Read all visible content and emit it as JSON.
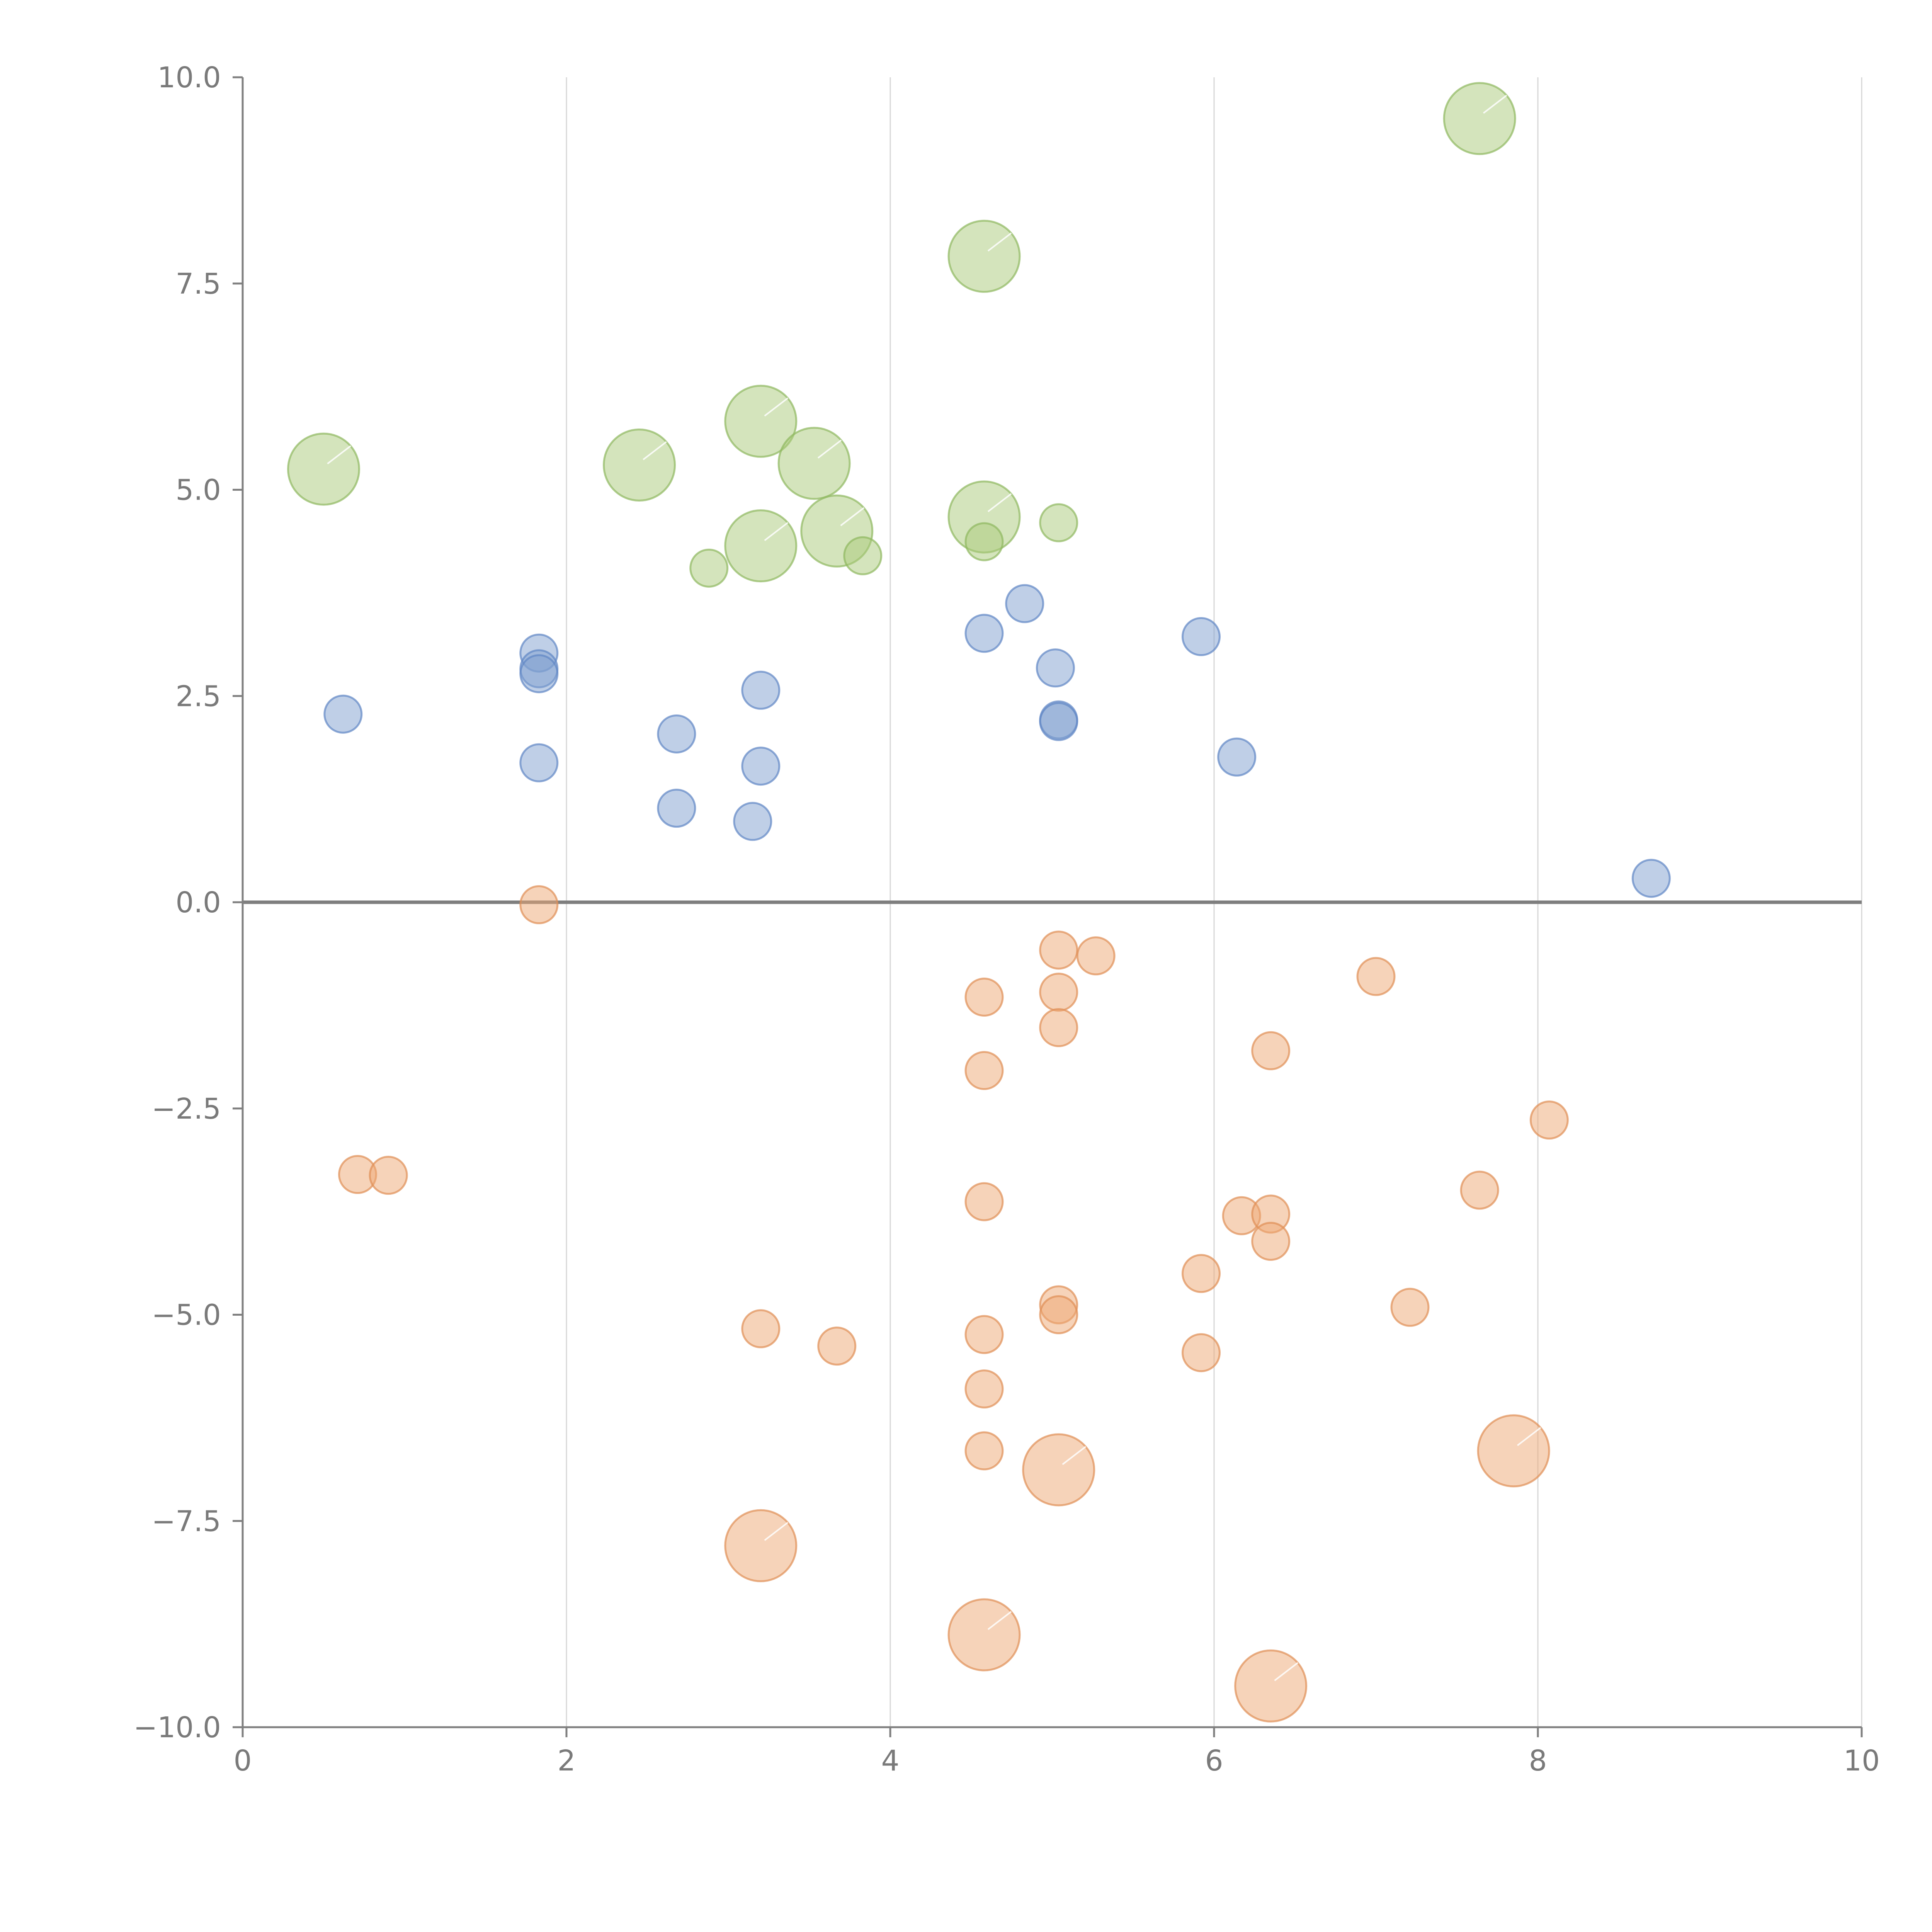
{
  "chart_data": {
    "type": "scatter",
    "title": "",
    "xlabel": "",
    "ylabel": "",
    "xlim": [
      0,
      10
    ],
    "ylim": [
      -10,
      10
    ],
    "x_ticks": [
      0,
      2,
      4,
      6,
      8,
      10
    ],
    "x_tick_labels": [
      "0",
      "2",
      "4",
      "6",
      "8",
      "10"
    ],
    "y_ticks": [
      10,
      7.5,
      5,
      2.5,
      0,
      -2.5,
      -5,
      -7.5,
      -10
    ],
    "y_tick_labels": [
      "10.0",
      "7.5",
      "5.0",
      "2.5",
      "0.0",
      "−2.5",
      "−5.0",
      "−7.5",
      "−10.0"
    ],
    "vertical_grid": true,
    "horizontal_reference": 0,
    "series": [
      {
        "name": "green",
        "color": "#a9c97a",
        "stroke": "#8fb860",
        "points": [
          {
            "x": 0.5,
            "y": 5.25,
            "size": 3
          },
          {
            "x": 2.45,
            "y": 5.3,
            "size": 3
          },
          {
            "x": 2.88,
            "y": 4.05,
            "size": 1
          },
          {
            "x": 3.2,
            "y": 5.83,
            "size": 3
          },
          {
            "x": 3.2,
            "y": 4.32,
            "size": 3
          },
          {
            "x": 3.53,
            "y": 5.32,
            "size": 3
          },
          {
            "x": 3.67,
            "y": 4.5,
            "size": 3
          },
          {
            "x": 3.83,
            "y": 4.2,
            "size": 1
          },
          {
            "x": 4.58,
            "y": 7.83,
            "size": 3
          },
          {
            "x": 4.58,
            "y": 4.67,
            "size": 3
          },
          {
            "x": 4.58,
            "y": 4.37,
            "size": 1
          },
          {
            "x": 5.04,
            "y": 4.6,
            "size": 1
          },
          {
            "x": 7.64,
            "y": 9.5,
            "size": 3
          }
        ]
      },
      {
        "name": "blue",
        "color": "#7f9fd0",
        "stroke": "#5f86c4",
        "points": [
          {
            "x": 0.62,
            "y": 2.28,
            "size": 1
          },
          {
            "x": 1.83,
            "y": 3.02,
            "size": 1
          },
          {
            "x": 1.83,
            "y": 2.83,
            "size": 1
          },
          {
            "x": 1.83,
            "y": 2.77,
            "size": 1
          },
          {
            "x": 1.83,
            "y": 1.69,
            "size": 1
          },
          {
            "x": 2.68,
            "y": 2.04,
            "size": 1
          },
          {
            "x": 2.68,
            "y": 1.14,
            "size": 1
          },
          {
            "x": 3.15,
            "y": 0.98,
            "size": 1
          },
          {
            "x": 3.2,
            "y": 2.57,
            "size": 1
          },
          {
            "x": 3.2,
            "y": 1.65,
            "size": 1
          },
          {
            "x": 4.58,
            "y": 3.26,
            "size": 1
          },
          {
            "x": 4.83,
            "y": 3.62,
            "size": 1
          },
          {
            "x": 5.02,
            "y": 2.84,
            "size": 1
          },
          {
            "x": 5.04,
            "y": 2.21,
            "size": 1
          },
          {
            "x": 5.04,
            "y": 2.19,
            "size": 1
          },
          {
            "x": 5.92,
            "y": 3.22,
            "size": 1
          },
          {
            "x": 6.14,
            "y": 1.76,
            "size": 1
          },
          {
            "x": 8.7,
            "y": 0.29,
            "size": 1
          }
        ]
      },
      {
        "name": "orange",
        "color": "#eda874",
        "stroke": "#e08f55",
        "points": [
          {
            "x": 0.71,
            "y": -3.3,
            "size": 1
          },
          {
            "x": 0.9,
            "y": -3.31,
            "size": 1
          },
          {
            "x": 1.83,
            "y": -0.03,
            "size": 1
          },
          {
            "x": 3.2,
            "y": -5.17,
            "size": 1
          },
          {
            "x": 3.2,
            "y": -7.8,
            "size": 3
          },
          {
            "x": 3.67,
            "y": -5.38,
            "size": 1
          },
          {
            "x": 4.58,
            "y": -1.15,
            "size": 1
          },
          {
            "x": 4.58,
            "y": -2.04,
            "size": 1
          },
          {
            "x": 4.58,
            "y": -3.63,
            "size": 1
          },
          {
            "x": 4.58,
            "y": -5.24,
            "size": 1
          },
          {
            "x": 4.58,
            "y": -5.9,
            "size": 1
          },
          {
            "x": 4.58,
            "y": -6.65,
            "size": 1
          },
          {
            "x": 4.58,
            "y": -8.88,
            "size": 3
          },
          {
            "x": 5.04,
            "y": -0.58,
            "size": 1
          },
          {
            "x": 5.04,
            "y": -1.09,
            "size": 1
          },
          {
            "x": 5.04,
            "y": -1.52,
            "size": 1
          },
          {
            "x": 5.04,
            "y": -4.88,
            "size": 1
          },
          {
            "x": 5.04,
            "y": -5.0,
            "size": 1
          },
          {
            "x": 5.04,
            "y": -6.88,
            "size": 3
          },
          {
            "x": 5.27,
            "y": -0.65,
            "size": 1
          },
          {
            "x": 5.92,
            "y": -4.5,
            "size": 1
          },
          {
            "x": 5.92,
            "y": -5.46,
            "size": 1
          },
          {
            "x": 6.17,
            "y": -3.8,
            "size": 1
          },
          {
            "x": 6.35,
            "y": -1.8,
            "size": 1
          },
          {
            "x": 6.35,
            "y": -3.78,
            "size": 1
          },
          {
            "x": 6.35,
            "y": -4.11,
            "size": 1
          },
          {
            "x": 6.35,
            "y": -9.5,
            "size": 3
          },
          {
            "x": 7.0,
            "y": -0.9,
            "size": 1
          },
          {
            "x": 7.21,
            "y": -4.91,
            "size": 1
          },
          {
            "x": 7.64,
            "y": -3.49,
            "size": 1
          },
          {
            "x": 7.85,
            "y": -6.65,
            "size": 3
          },
          {
            "x": 8.07,
            "y": -2.64,
            "size": 1
          }
        ]
      }
    ]
  }
}
